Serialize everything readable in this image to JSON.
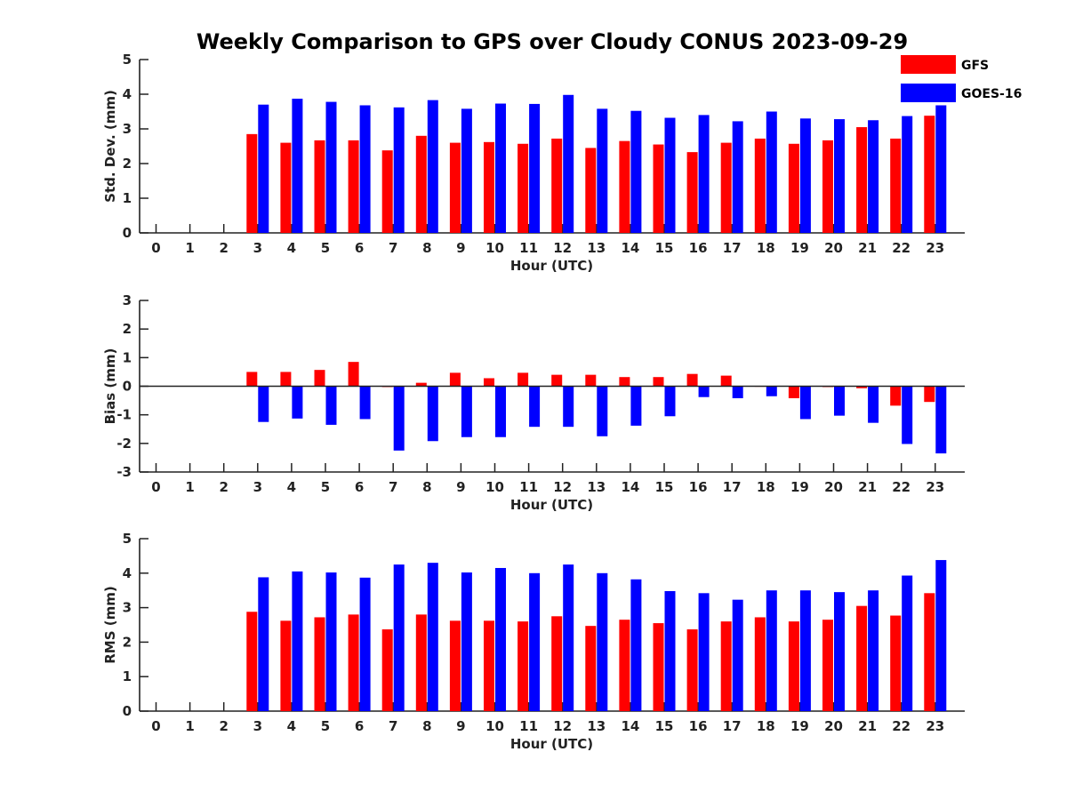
{
  "figure_title": "Weekly Comparison to GPS over Cloudy CONUS 2023-09-29",
  "legend": [
    {
      "label": "GFS",
      "color": "#ff0000"
    },
    {
      "label": "GOES-16",
      "color": "#0000ff"
    }
  ],
  "chart_data": [
    {
      "type": "bar",
      "ylabel": "Std. Dev. (mm)",
      "xlabel": "Hour (UTC)",
      "ylim": [
        0,
        5
      ],
      "yticks": [
        0,
        1,
        2,
        3,
        4,
        5
      ],
      "categories": [
        "0",
        "1",
        "2",
        "3",
        "4",
        "5",
        "6",
        "7",
        "8",
        "9",
        "10",
        "11",
        "12",
        "13",
        "14",
        "15",
        "16",
        "17",
        "18",
        "19",
        "20",
        "21",
        "22",
        "23"
      ],
      "series": [
        {
          "name": "GFS",
          "color": "#ff0000",
          "values": [
            null,
            null,
            null,
            2.85,
            2.6,
            2.67,
            2.67,
            2.38,
            2.8,
            2.6,
            2.62,
            2.57,
            2.72,
            2.45,
            2.65,
            2.55,
            2.33,
            2.6,
            2.72,
            2.57,
            2.67,
            3.05,
            2.72,
            3.38
          ]
        },
        {
          "name": "GOES-16",
          "color": "#0000ff",
          "values": [
            null,
            null,
            null,
            3.7,
            3.87,
            3.78,
            3.68,
            3.62,
            3.83,
            3.58,
            3.73,
            3.72,
            3.98,
            3.58,
            3.52,
            3.32,
            3.4,
            3.22,
            3.5,
            3.3,
            3.28,
            3.25,
            3.37,
            3.68
          ]
        }
      ]
    },
    {
      "type": "bar",
      "ylabel": "Bias (mm)",
      "xlabel": "Hour (UTC)",
      "ylim": [
        -3,
        3
      ],
      "yticks": [
        -3,
        -2,
        -1,
        0,
        1,
        2,
        3
      ],
      "categories": [
        "0",
        "1",
        "2",
        "3",
        "4",
        "5",
        "6",
        "7",
        "8",
        "9",
        "10",
        "11",
        "12",
        "13",
        "14",
        "15",
        "16",
        "17",
        "18",
        "19",
        "20",
        "21",
        "22",
        "23"
      ],
      "series": [
        {
          "name": "GFS",
          "color": "#ff0000",
          "values": [
            null,
            null,
            null,
            0.5,
            0.5,
            0.57,
            0.85,
            -0.03,
            0.12,
            0.47,
            0.28,
            0.47,
            0.4,
            0.4,
            0.32,
            0.32,
            0.43,
            0.37,
            0,
            -0.42,
            -0.03,
            -0.07,
            -0.68,
            -0.55
          ]
        },
        {
          "name": "GOES-16",
          "color": "#0000ff",
          "values": [
            null,
            null,
            null,
            -1.25,
            -1.13,
            -1.35,
            -1.15,
            -2.25,
            -1.92,
            -1.78,
            -1.78,
            -1.42,
            -1.42,
            -1.75,
            -1.38,
            -1.05,
            -0.38,
            -0.42,
            -0.35,
            -1.15,
            -1.03,
            -1.28,
            -2.02,
            -2.35
          ]
        }
      ]
    },
    {
      "type": "bar",
      "ylabel": "RMS (mm)",
      "xlabel": "Hour (UTC)",
      "ylim": [
        0,
        5
      ],
      "yticks": [
        0,
        1,
        2,
        3,
        4,
        5
      ],
      "categories": [
        "0",
        "1",
        "2",
        "3",
        "4",
        "5",
        "6",
        "7",
        "8",
        "9",
        "10",
        "11",
        "12",
        "13",
        "14",
        "15",
        "16",
        "17",
        "18",
        "19",
        "20",
        "21",
        "22",
        "23"
      ],
      "series": [
        {
          "name": "GFS",
          "color": "#ff0000",
          "values": [
            null,
            null,
            null,
            2.88,
            2.62,
            2.72,
            2.8,
            2.37,
            2.8,
            2.62,
            2.62,
            2.6,
            2.75,
            2.47,
            2.65,
            2.55,
            2.37,
            2.6,
            2.72,
            2.6,
            2.65,
            3.05,
            2.77,
            3.42
          ]
        },
        {
          "name": "GOES-16",
          "color": "#0000ff",
          "values": [
            null,
            null,
            null,
            3.88,
            4.05,
            4.02,
            3.87,
            4.25,
            4.3,
            4.02,
            4.15,
            4.0,
            4.25,
            4.0,
            3.82,
            3.48,
            3.42,
            3.23,
            3.5,
            3.5,
            3.45,
            3.5,
            3.93,
            4.38
          ]
        }
      ]
    }
  ]
}
